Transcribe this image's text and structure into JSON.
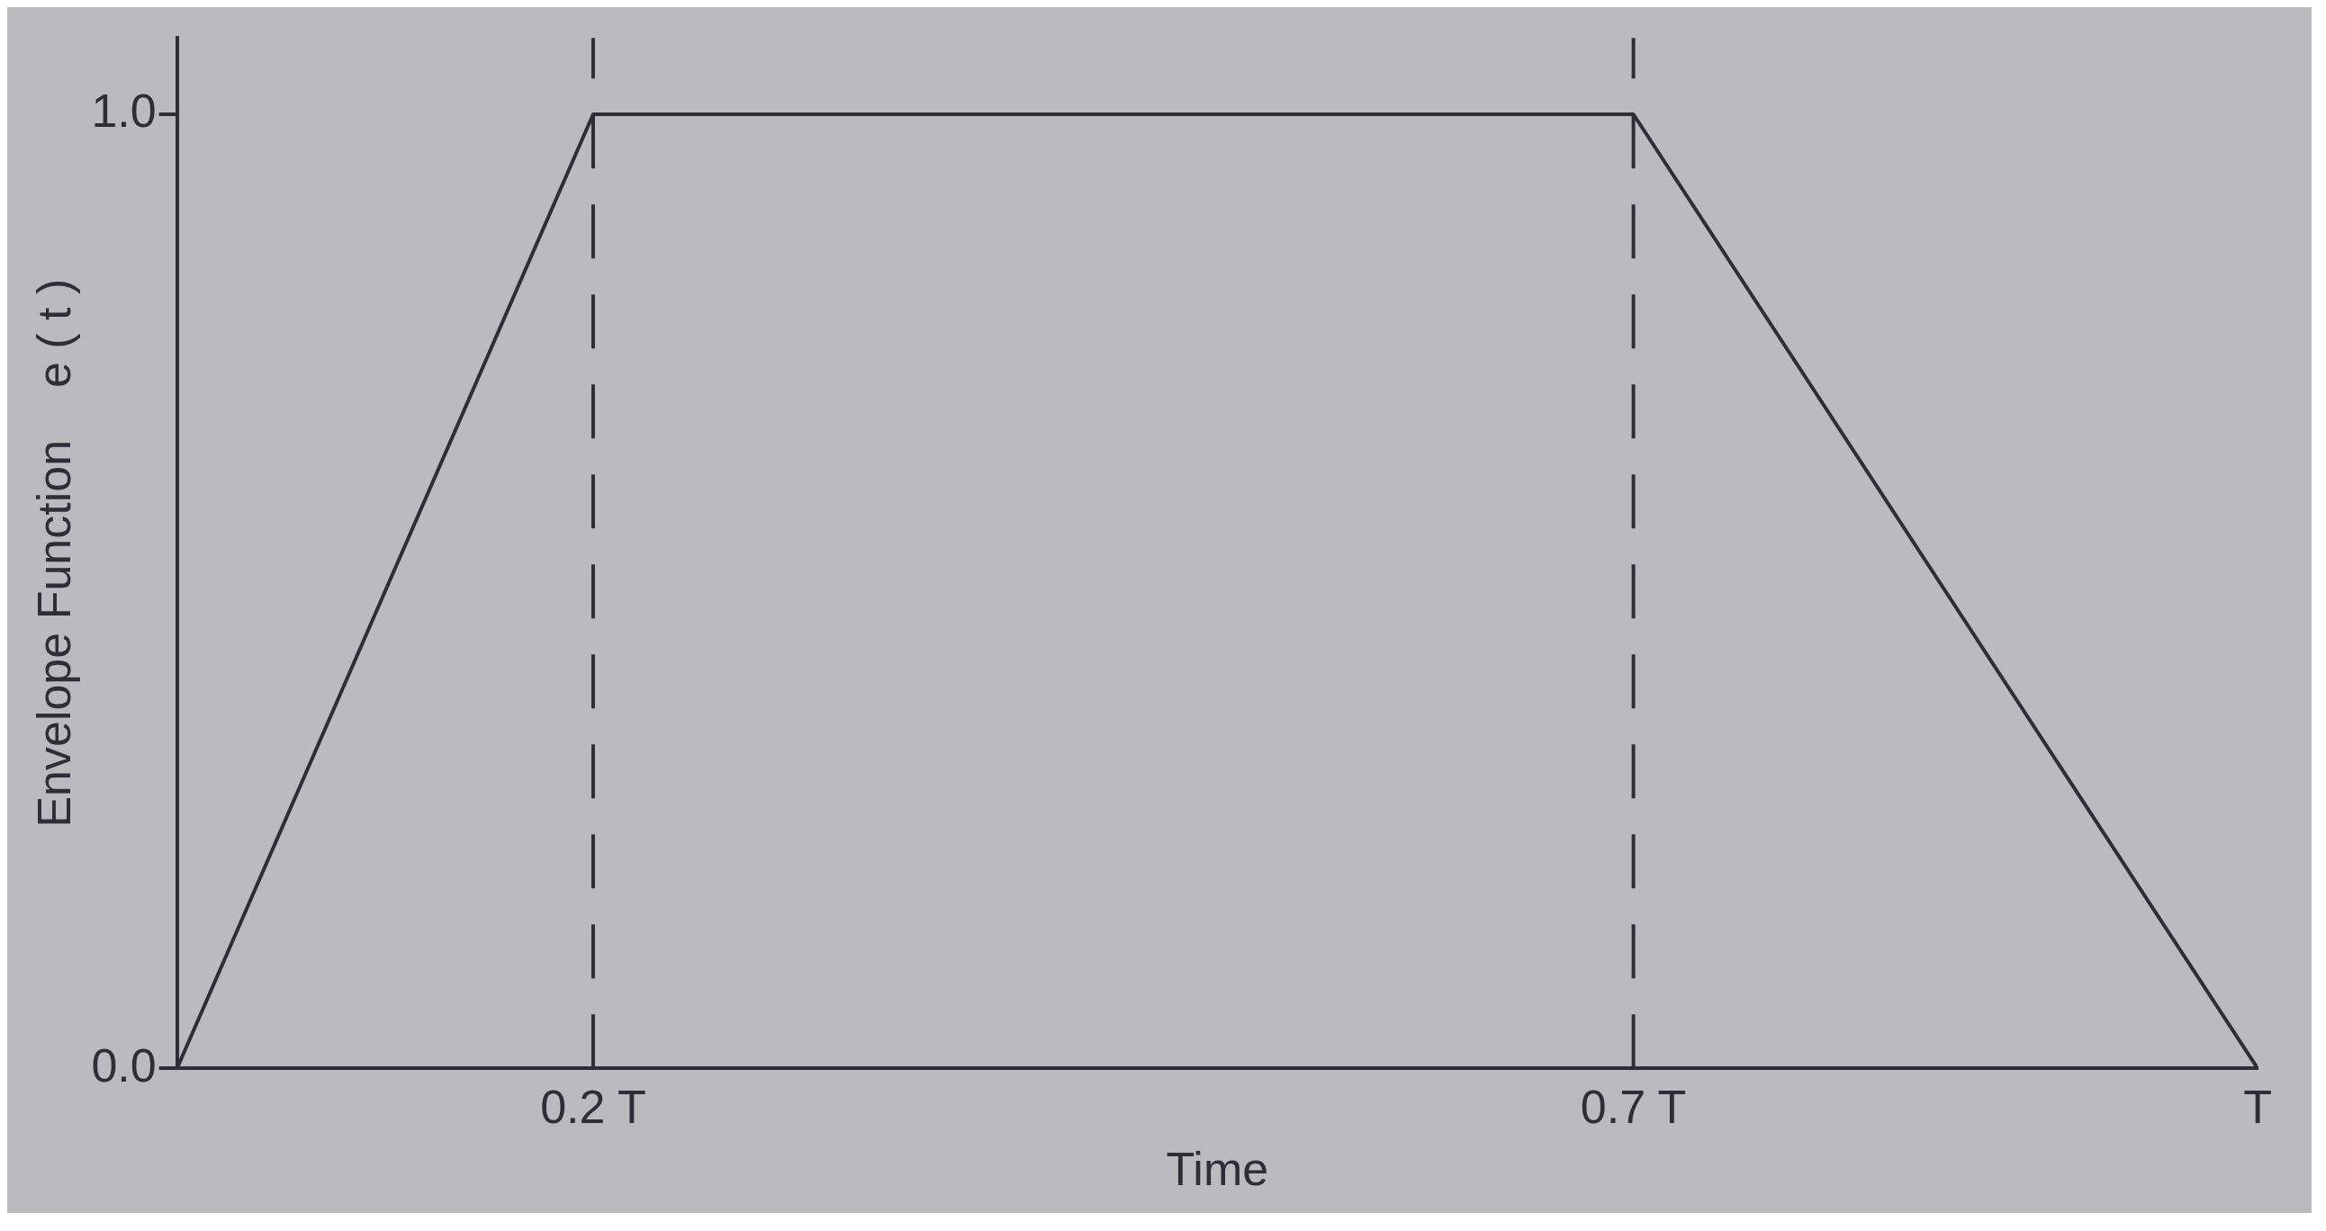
{
  "chart_data": {
    "type": "line",
    "xlabel": "Time",
    "ylabel": "Envelope Function    e ( t )",
    "x": [
      0,
      0.2,
      0.7,
      1
    ],
    "series": [
      {
        "color": "#2b2f38",
        "values": [
          0,
          1,
          1,
          0
        ]
      }
    ],
    "xlim": [
      0,
      1
    ],
    "ylim": [
      0,
      1.08
    ],
    "xticks": [
      {
        "value": 0.2,
        "label": "0.2 T"
      },
      {
        "value": 0.7,
        "label": "0.7 T"
      },
      {
        "value": 1,
        "label": "T"
      }
    ],
    "yticks": [
      {
        "value": 0,
        "label": "0.0"
      },
      {
        "value": 1,
        "label": "1.0"
      }
    ],
    "ref_lines": [
      {
        "axis": "x",
        "value": 0.2,
        "line_style": "dashed",
        "color": "#2b2f38"
      },
      {
        "axis": "x",
        "value": 0.7,
        "line_style": "dashed",
        "color": "#2b2f38"
      }
    ],
    "grid": false,
    "legend": false,
    "marker": "none",
    "line_style": "solid"
  }
}
